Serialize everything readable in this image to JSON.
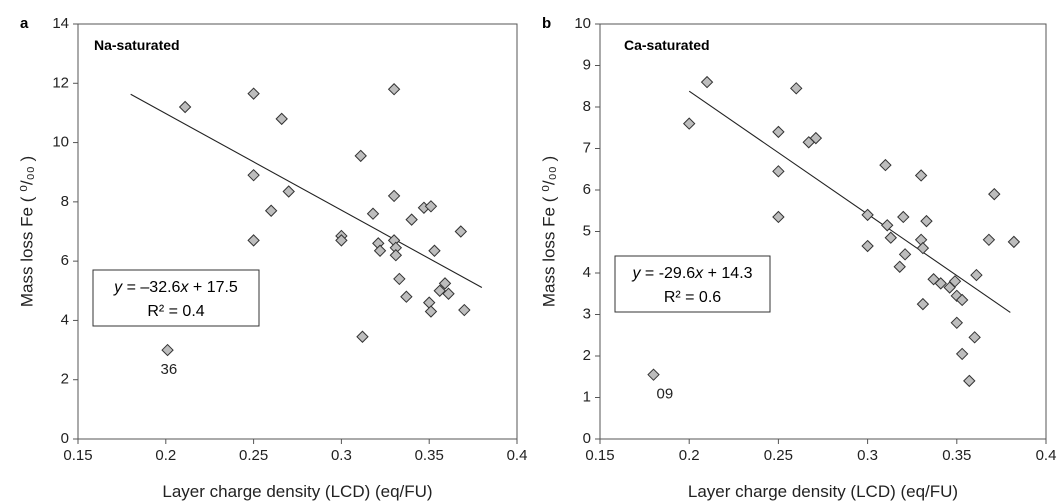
{
  "chart_data": [
    {
      "type": "scatter",
      "panel_label": "a",
      "inset_title": "Na-saturated",
      "xlabel": "Layer charge density (LCD) (eq/FU)",
      "ylabel": "Mass loss Fe ( ⁰/₀₀ )",
      "xlim": [
        0.15,
        0.4
      ],
      "ylim": [
        0,
        14
      ],
      "x_ticks": [
        "0.15",
        "0.2",
        "0.25",
        "0.3",
        "0.35",
        "0.4"
      ],
      "y_ticks": [
        "0",
        "2",
        "4",
        "6",
        "8",
        "10",
        "12",
        "14"
      ],
      "grid": false,
      "points": [
        {
          "x": 0.201,
          "y": 3.0
        },
        {
          "x": 0.211,
          "y": 11.2
        },
        {
          "x": 0.25,
          "y": 11.65
        },
        {
          "x": 0.25,
          "y": 8.9
        },
        {
          "x": 0.25,
          "y": 6.7
        },
        {
          "x": 0.26,
          "y": 7.7
        },
        {
          "x": 0.266,
          "y": 10.8
        },
        {
          "x": 0.27,
          "y": 8.35
        },
        {
          "x": 0.3,
          "y": 6.85
        },
        {
          "x": 0.3,
          "y": 6.7
        },
        {
          "x": 0.311,
          "y": 9.55
        },
        {
          "x": 0.312,
          "y": 3.45
        },
        {
          "x": 0.318,
          "y": 7.6
        },
        {
          "x": 0.321,
          "y": 6.6
        },
        {
          "x": 0.322,
          "y": 6.35
        },
        {
          "x": 0.33,
          "y": 11.8
        },
        {
          "x": 0.33,
          "y": 8.2
        },
        {
          "x": 0.33,
          "y": 6.7
        },
        {
          "x": 0.331,
          "y": 6.45
        },
        {
          "x": 0.331,
          "y": 6.2
        },
        {
          "x": 0.333,
          "y": 5.4
        },
        {
          "x": 0.337,
          "y": 4.8
        },
        {
          "x": 0.34,
          "y": 7.4
        },
        {
          "x": 0.347,
          "y": 7.8
        },
        {
          "x": 0.351,
          "y": 7.85
        },
        {
          "x": 0.35,
          "y": 4.6
        },
        {
          "x": 0.351,
          "y": 4.3
        },
        {
          "x": 0.353,
          "y": 6.35
        },
        {
          "x": 0.356,
          "y": 5.0
        },
        {
          "x": 0.359,
          "y": 5.25
        },
        {
          "x": 0.361,
          "y": 4.9
        },
        {
          "x": 0.368,
          "y": 7.0
        },
        {
          "x": 0.37,
          "y": 4.35
        }
      ],
      "annotations": [
        {
          "text": "36",
          "x": 0.201,
          "y": 3.0
        }
      ],
      "trendline": {
        "x": [
          0.18,
          0.38
        ],
        "y": [
          11.63,
          5.11
        ]
      },
      "equation_text": {
        "lhs": "y",
        "eq": " = ",
        "coef": "–32.6",
        "var": "x",
        "rest": " + 17.5"
      },
      "r2_text": "R² = 0.4"
    },
    {
      "type": "scatter",
      "panel_label": "b",
      "inset_title": "Ca-saturated",
      "xlabel": "Layer charge density (LCD) (eq/FU)",
      "ylabel": "Mass loss Fe ( ⁰/₀₀ )",
      "xlim": [
        0.15,
        0.4
      ],
      "ylim": [
        0,
        10
      ],
      "x_ticks": [
        "0.15",
        "0.2",
        "0.25",
        "0.3",
        "0.35",
        "0.4"
      ],
      "y_ticks": [
        "0",
        "1",
        "2",
        "3",
        "4",
        "5",
        "6",
        "7",
        "8",
        "9",
        "10"
      ],
      "grid": false,
      "points": [
        {
          "x": 0.18,
          "y": 1.55
        },
        {
          "x": 0.2,
          "y": 7.6
        },
        {
          "x": 0.21,
          "y": 8.6
        },
        {
          "x": 0.25,
          "y": 7.4
        },
        {
          "x": 0.25,
          "y": 6.45
        },
        {
          "x": 0.25,
          "y": 5.35
        },
        {
          "x": 0.26,
          "y": 8.45
        },
        {
          "x": 0.267,
          "y": 7.15
        },
        {
          "x": 0.271,
          "y": 7.25
        },
        {
          "x": 0.3,
          "y": 5.4
        },
        {
          "x": 0.3,
          "y": 4.65
        },
        {
          "x": 0.31,
          "y": 6.6
        },
        {
          "x": 0.311,
          "y": 5.15
        },
        {
          "x": 0.313,
          "y": 4.85
        },
        {
          "x": 0.318,
          "y": 4.15
        },
        {
          "x": 0.32,
          "y": 5.35
        },
        {
          "x": 0.321,
          "y": 4.45
        },
        {
          "x": 0.33,
          "y": 6.35
        },
        {
          "x": 0.33,
          "y": 4.8
        },
        {
          "x": 0.331,
          "y": 4.6
        },
        {
          "x": 0.331,
          "y": 3.25
        },
        {
          "x": 0.333,
          "y": 5.25
        },
        {
          "x": 0.337,
          "y": 3.85
        },
        {
          "x": 0.341,
          "y": 3.75
        },
        {
          "x": 0.346,
          "y": 3.65
        },
        {
          "x": 0.349,
          "y": 3.8
        },
        {
          "x": 0.35,
          "y": 3.45
        },
        {
          "x": 0.35,
          "y": 2.8
        },
        {
          "x": 0.353,
          "y": 3.35
        },
        {
          "x": 0.353,
          "y": 2.05
        },
        {
          "x": 0.357,
          "y": 1.4
        },
        {
          "x": 0.36,
          "y": 2.45
        },
        {
          "x": 0.361,
          "y": 3.95
        },
        {
          "x": 0.368,
          "y": 4.8
        },
        {
          "x": 0.371,
          "y": 5.9
        },
        {
          "x": 0.382,
          "y": 4.75
        }
      ],
      "annotations": [
        {
          "text": "09",
          "x": 0.18,
          "y": 1.55
        }
      ],
      "trendline": {
        "x": [
          0.2,
          0.38
        ],
        "y": [
          8.38,
          3.05
        ]
      },
      "equation_text": {
        "lhs": "y",
        "eq": " = ",
        "coef": "-29.6",
        "var": "x",
        "rest": " + 14.3"
      },
      "r2_text": "R² = 0.6"
    }
  ]
}
